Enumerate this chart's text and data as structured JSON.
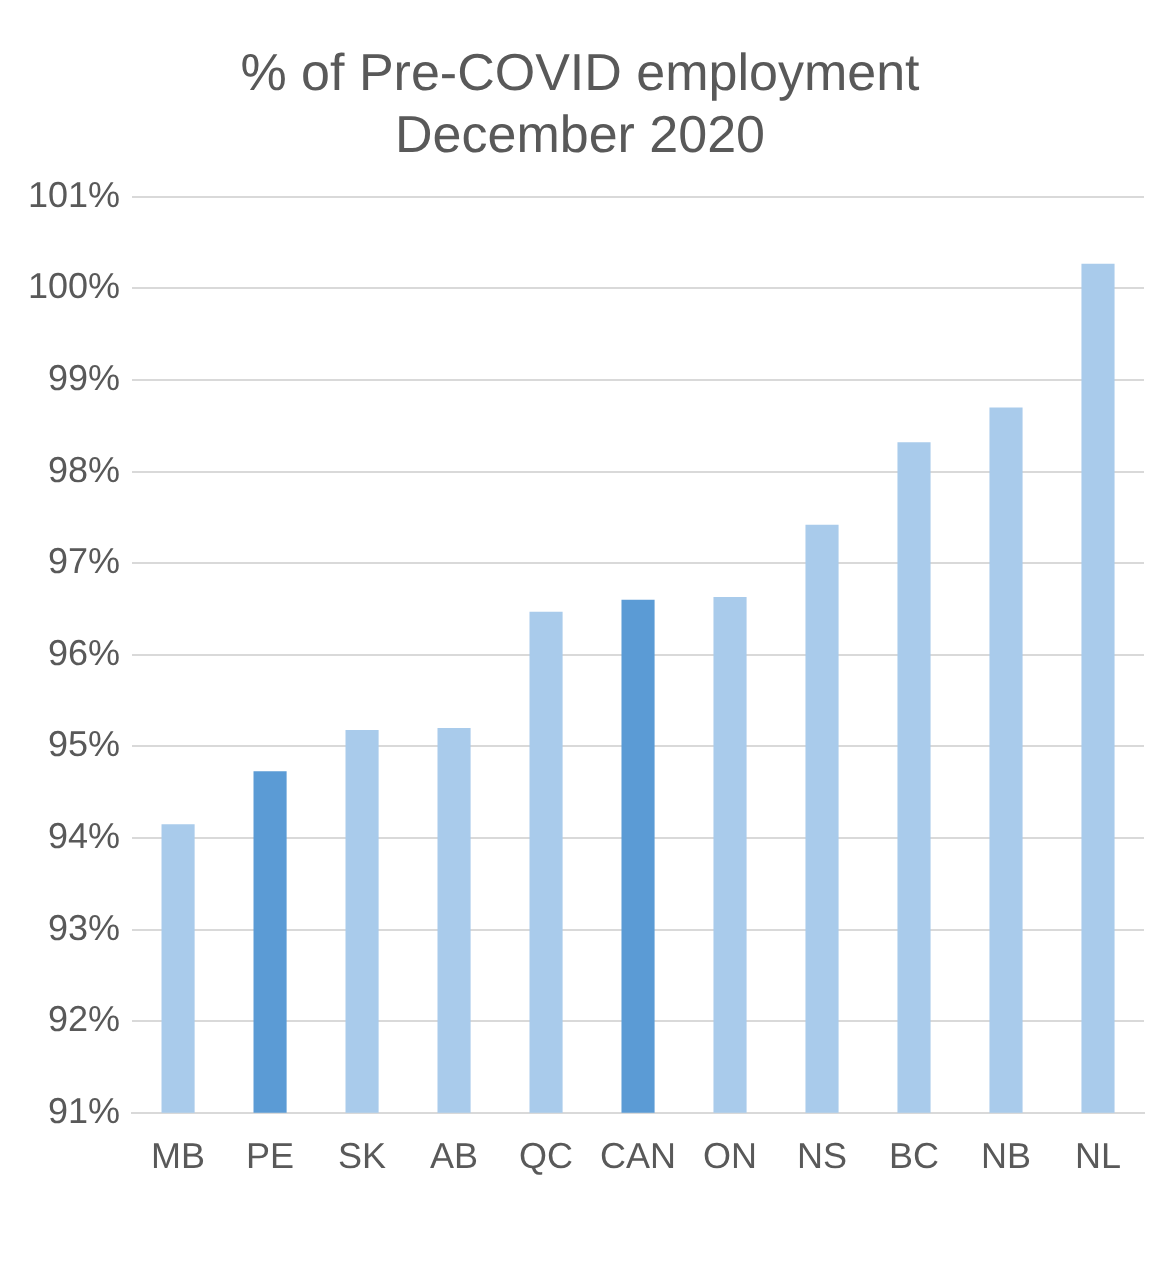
{
  "chart_data": {
    "type": "bar",
    "title": "% of Pre-COVID employment\nDecember 2020",
    "categories": [
      "MB",
      "PE",
      "SK",
      "AB",
      "QC",
      "CAN",
      "ON",
      "NS",
      "BC",
      "NB",
      "NL"
    ],
    "values": [
      94.15,
      94.73,
      95.18,
      95.2,
      96.47,
      96.6,
      96.63,
      97.42,
      98.32,
      98.7,
      100.27
    ],
    "colors": [
      "#a9cbeb",
      "#5b9bd5",
      "#a9cbeb",
      "#a9cbeb",
      "#a9cbeb",
      "#5b9bd5",
      "#a9cbeb",
      "#a9cbeb",
      "#a9cbeb",
      "#a9cbeb",
      "#a9cbeb"
    ],
    "ylim": [
      91,
      101
    ],
    "yticks": [
      {
        "value": 91,
        "label": "91%"
      },
      {
        "value": 92,
        "label": "92%"
      },
      {
        "value": 93,
        "label": "93%"
      },
      {
        "value": 94,
        "label": "94%"
      },
      {
        "value": 95,
        "label": "95%"
      },
      {
        "value": 96,
        "label": "96%"
      },
      {
        "value": 97,
        "label": "97%"
      },
      {
        "value": 98,
        "label": "98%"
      },
      {
        "value": 99,
        "label": "99%"
      },
      {
        "value": 100,
        "label": "100%"
      },
      {
        "value": 101,
        "label": "101%"
      }
    ],
    "grid": "y",
    "legend": false
  }
}
